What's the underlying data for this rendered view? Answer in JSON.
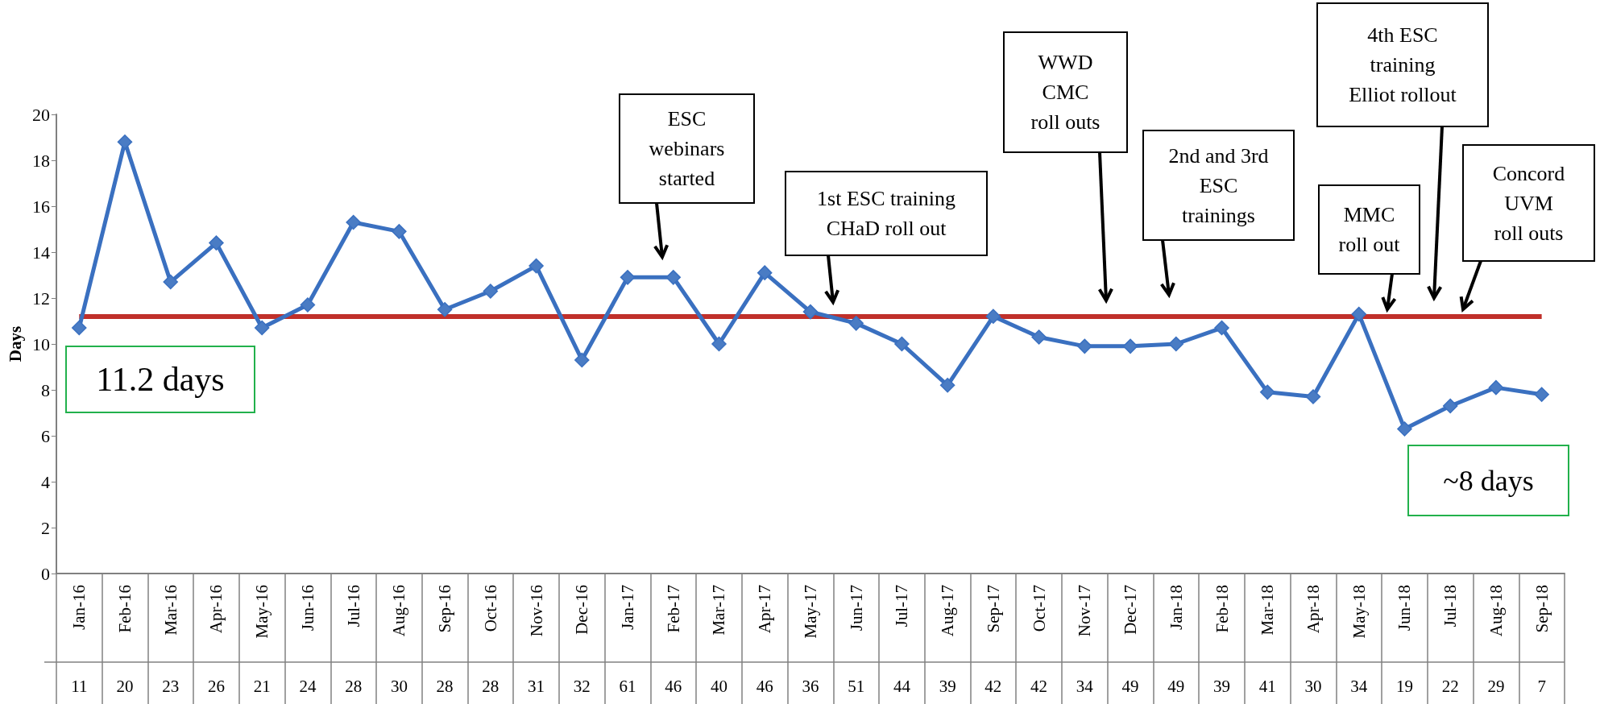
{
  "chart_data": {
    "type": "line",
    "ylabel": "Days",
    "categories": [
      "Jan-16",
      "Feb-16",
      "Mar-16",
      "Apr-16",
      "May-16",
      "Jun-16",
      "Jul-16",
      "Aug-16",
      "Sep-16",
      "Oct-16",
      "Nov-16",
      "Dec-16",
      "Jan-17",
      "Feb-17",
      "Mar-17",
      "Apr-17",
      "May-17",
      "Jun-17",
      "Jul-17",
      "Aug-17",
      "Sep-17",
      "Oct-17",
      "Nov-17",
      "Dec-17",
      "Jan-18",
      "Feb-18",
      "Mar-18",
      "Apr-18",
      "May-18",
      "Jun-18",
      "Jul-18",
      "Aug-18",
      "Sep-18"
    ],
    "series": [
      {
        "color": "#3a70c0",
        "values": [
          10.7,
          18.8,
          12.7,
          14.4,
          10.7,
          11.7,
          15.3,
          14.9,
          11.5,
          12.3,
          13.4,
          9.3,
          12.9,
          12.9,
          10.0,
          13.1,
          11.4,
          10.9,
          10.0,
          8.2,
          11.2,
          10.3,
          9.9,
          9.9,
          10.0,
          10.7,
          7.9,
          7.7,
          11.3,
          6.3,
          7.3,
          8.1,
          7.8
        ]
      }
    ],
    "ylim": [
      0,
      20
    ],
    "yticks": [
      0,
      2,
      4,
      6,
      8,
      10,
      12,
      14,
      16,
      18,
      20
    ],
    "marker": "diamond",
    "line_style": "solid",
    "ref_lines": [
      {
        "axis": "y",
        "value": 11.2,
        "color": "#c0302a"
      }
    ],
    "annotations": [
      "ESC\nwebinars\nstarted",
      "1st ESC training\nCHaD roll out",
      "WWD\nCMC\nroll outs",
      "2nd and 3rd\nESC\ntrainings",
      "MMC\nroll out",
      "4th ESC\ntraining\nElliot rollout",
      "Concord\nUVM\nroll outs",
      "11.2 days",
      "~8 days",
      "11",
      "20",
      "23",
      "26",
      "21",
      "24",
      "28",
      "30",
      "28",
      "28",
      "31",
      "32",
      "61",
      "46",
      "40",
      "46",
      "36",
      "51",
      "44",
      "39",
      "42",
      "42",
      "34",
      "49",
      "49",
      "39",
      "41",
      "30",
      "34",
      "19",
      "22",
      "29",
      "7"
    ]
  }
}
